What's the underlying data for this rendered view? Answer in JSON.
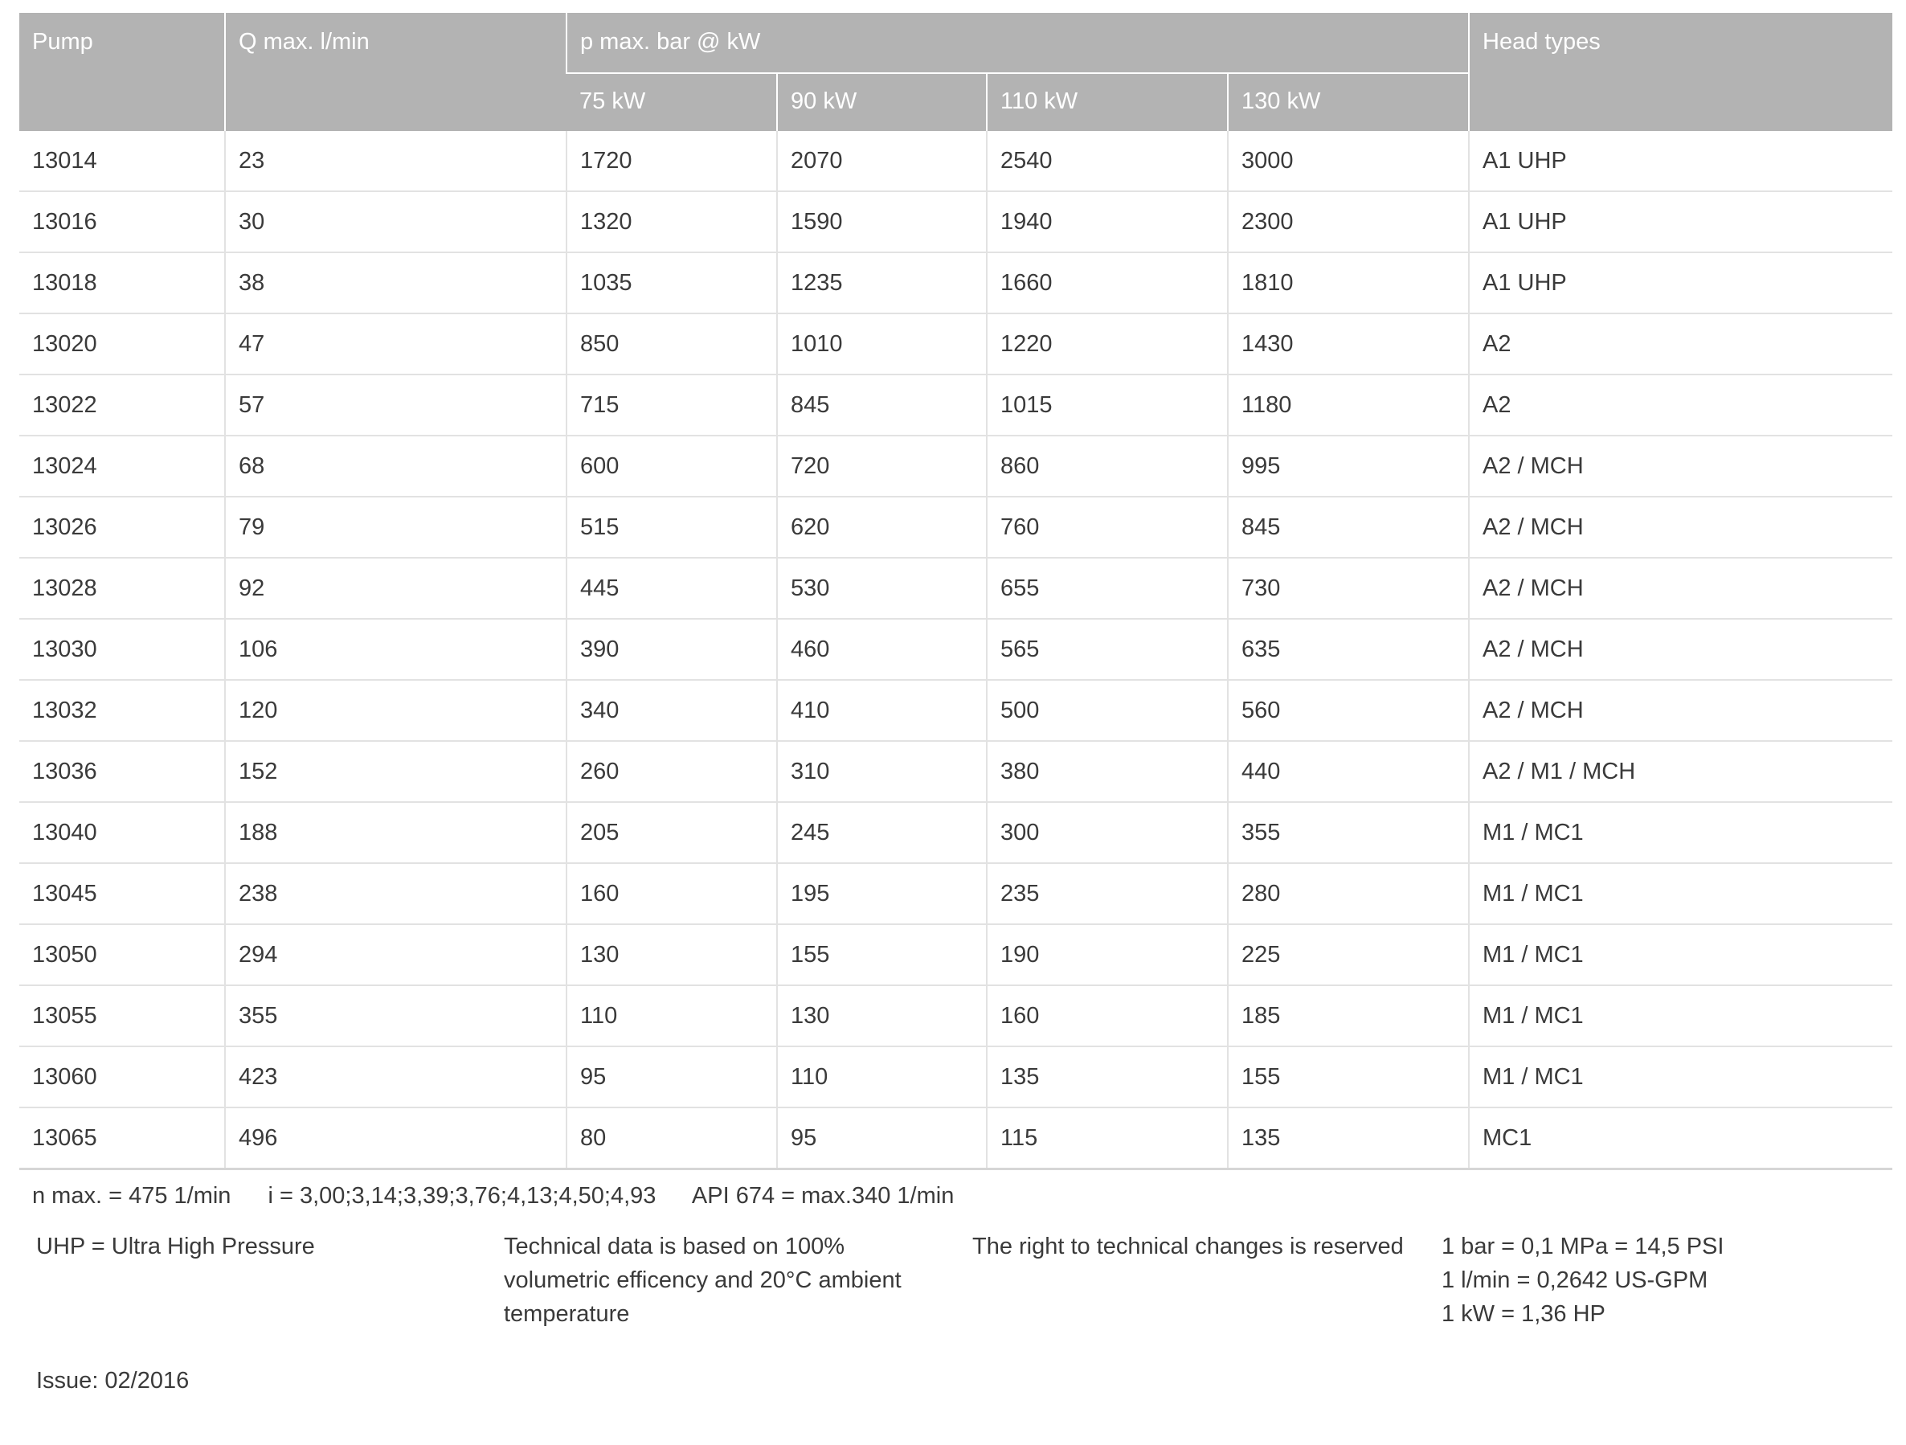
{
  "header": {
    "pump": "Pump",
    "q_max": "Q max. l/min",
    "p_max": "p max. bar @ kW",
    "head_types": "Head types",
    "kw": [
      "75 kW",
      "90 kW",
      "110 kW",
      "130 kW"
    ]
  },
  "rows": [
    [
      "13014",
      "23",
      "1720",
      "2070",
      "2540",
      "3000",
      "A1 UHP"
    ],
    [
      "13016",
      "30",
      "1320",
      "1590",
      "1940",
      "2300",
      "A1 UHP"
    ],
    [
      "13018",
      "38",
      "1035",
      "1235",
      "1660",
      "1810",
      "A1 UHP"
    ],
    [
      "13020",
      "47",
      "850",
      "1010",
      "1220",
      "1430",
      "A2"
    ],
    [
      "13022",
      "57",
      "715",
      "845",
      "1015",
      "1180",
      "A2"
    ],
    [
      "13024",
      "68",
      "600",
      "720",
      "860",
      "995",
      "A2 / MCH"
    ],
    [
      "13026",
      "79",
      "515",
      "620",
      "760",
      "845",
      "A2 / MCH"
    ],
    [
      "13028",
      "92",
      "445",
      "530",
      "655",
      "730",
      "A2 / MCH"
    ],
    [
      "13030",
      "106",
      "390",
      "460",
      "565",
      "635",
      "A2 / MCH"
    ],
    [
      "13032",
      "120",
      "340",
      "410",
      "500",
      "560",
      "A2 / MCH"
    ],
    [
      "13036",
      "152",
      "260",
      "310",
      "380",
      "440",
      "A2 / M1 / MCH"
    ],
    [
      "13040",
      "188",
      "205",
      "245",
      "300",
      "355",
      "M1 / MC1"
    ],
    [
      "13045",
      "238",
      "160",
      "195",
      "235",
      "280",
      "M1 / MC1"
    ],
    [
      "13050",
      "294",
      "130",
      "155",
      "190",
      "225",
      "M1 / MC1"
    ],
    [
      "13055",
      "355",
      "110",
      "130",
      "160",
      "185",
      "M1 / MC1"
    ],
    [
      "13060",
      "423",
      "95",
      "110",
      "135",
      "155",
      "M1 / MC1"
    ],
    [
      "13065",
      "496",
      "80",
      "95",
      "115",
      "135",
      "MC1"
    ]
  ],
  "notes": {
    "n_max": "n max. = 475 1/min",
    "ratios": "i = 3,00;3,14;3,39;3,76;4,13;4,50;4,93",
    "api": "API 674 = max.340 1/min",
    "uhp": "UHP = Ultra High Pressure",
    "technical": [
      "Technical data is based on 100%",
      "volumetric efficency and 20°C ambient",
      "temperature"
    ],
    "rights": "The right to technical changes is reserved",
    "conversions": [
      "1 bar = 0,1 MPa = 14,5 PSI",
      "1 l/min = 0,2642 US-GPM",
      "1 kW = 1,36 HP"
    ],
    "issue": "Issue: 02/2016"
  },
  "colors": {
    "header_bg": "#b3b3b3",
    "header_text": "#ffffff",
    "grid": "#e2e2e2"
  }
}
